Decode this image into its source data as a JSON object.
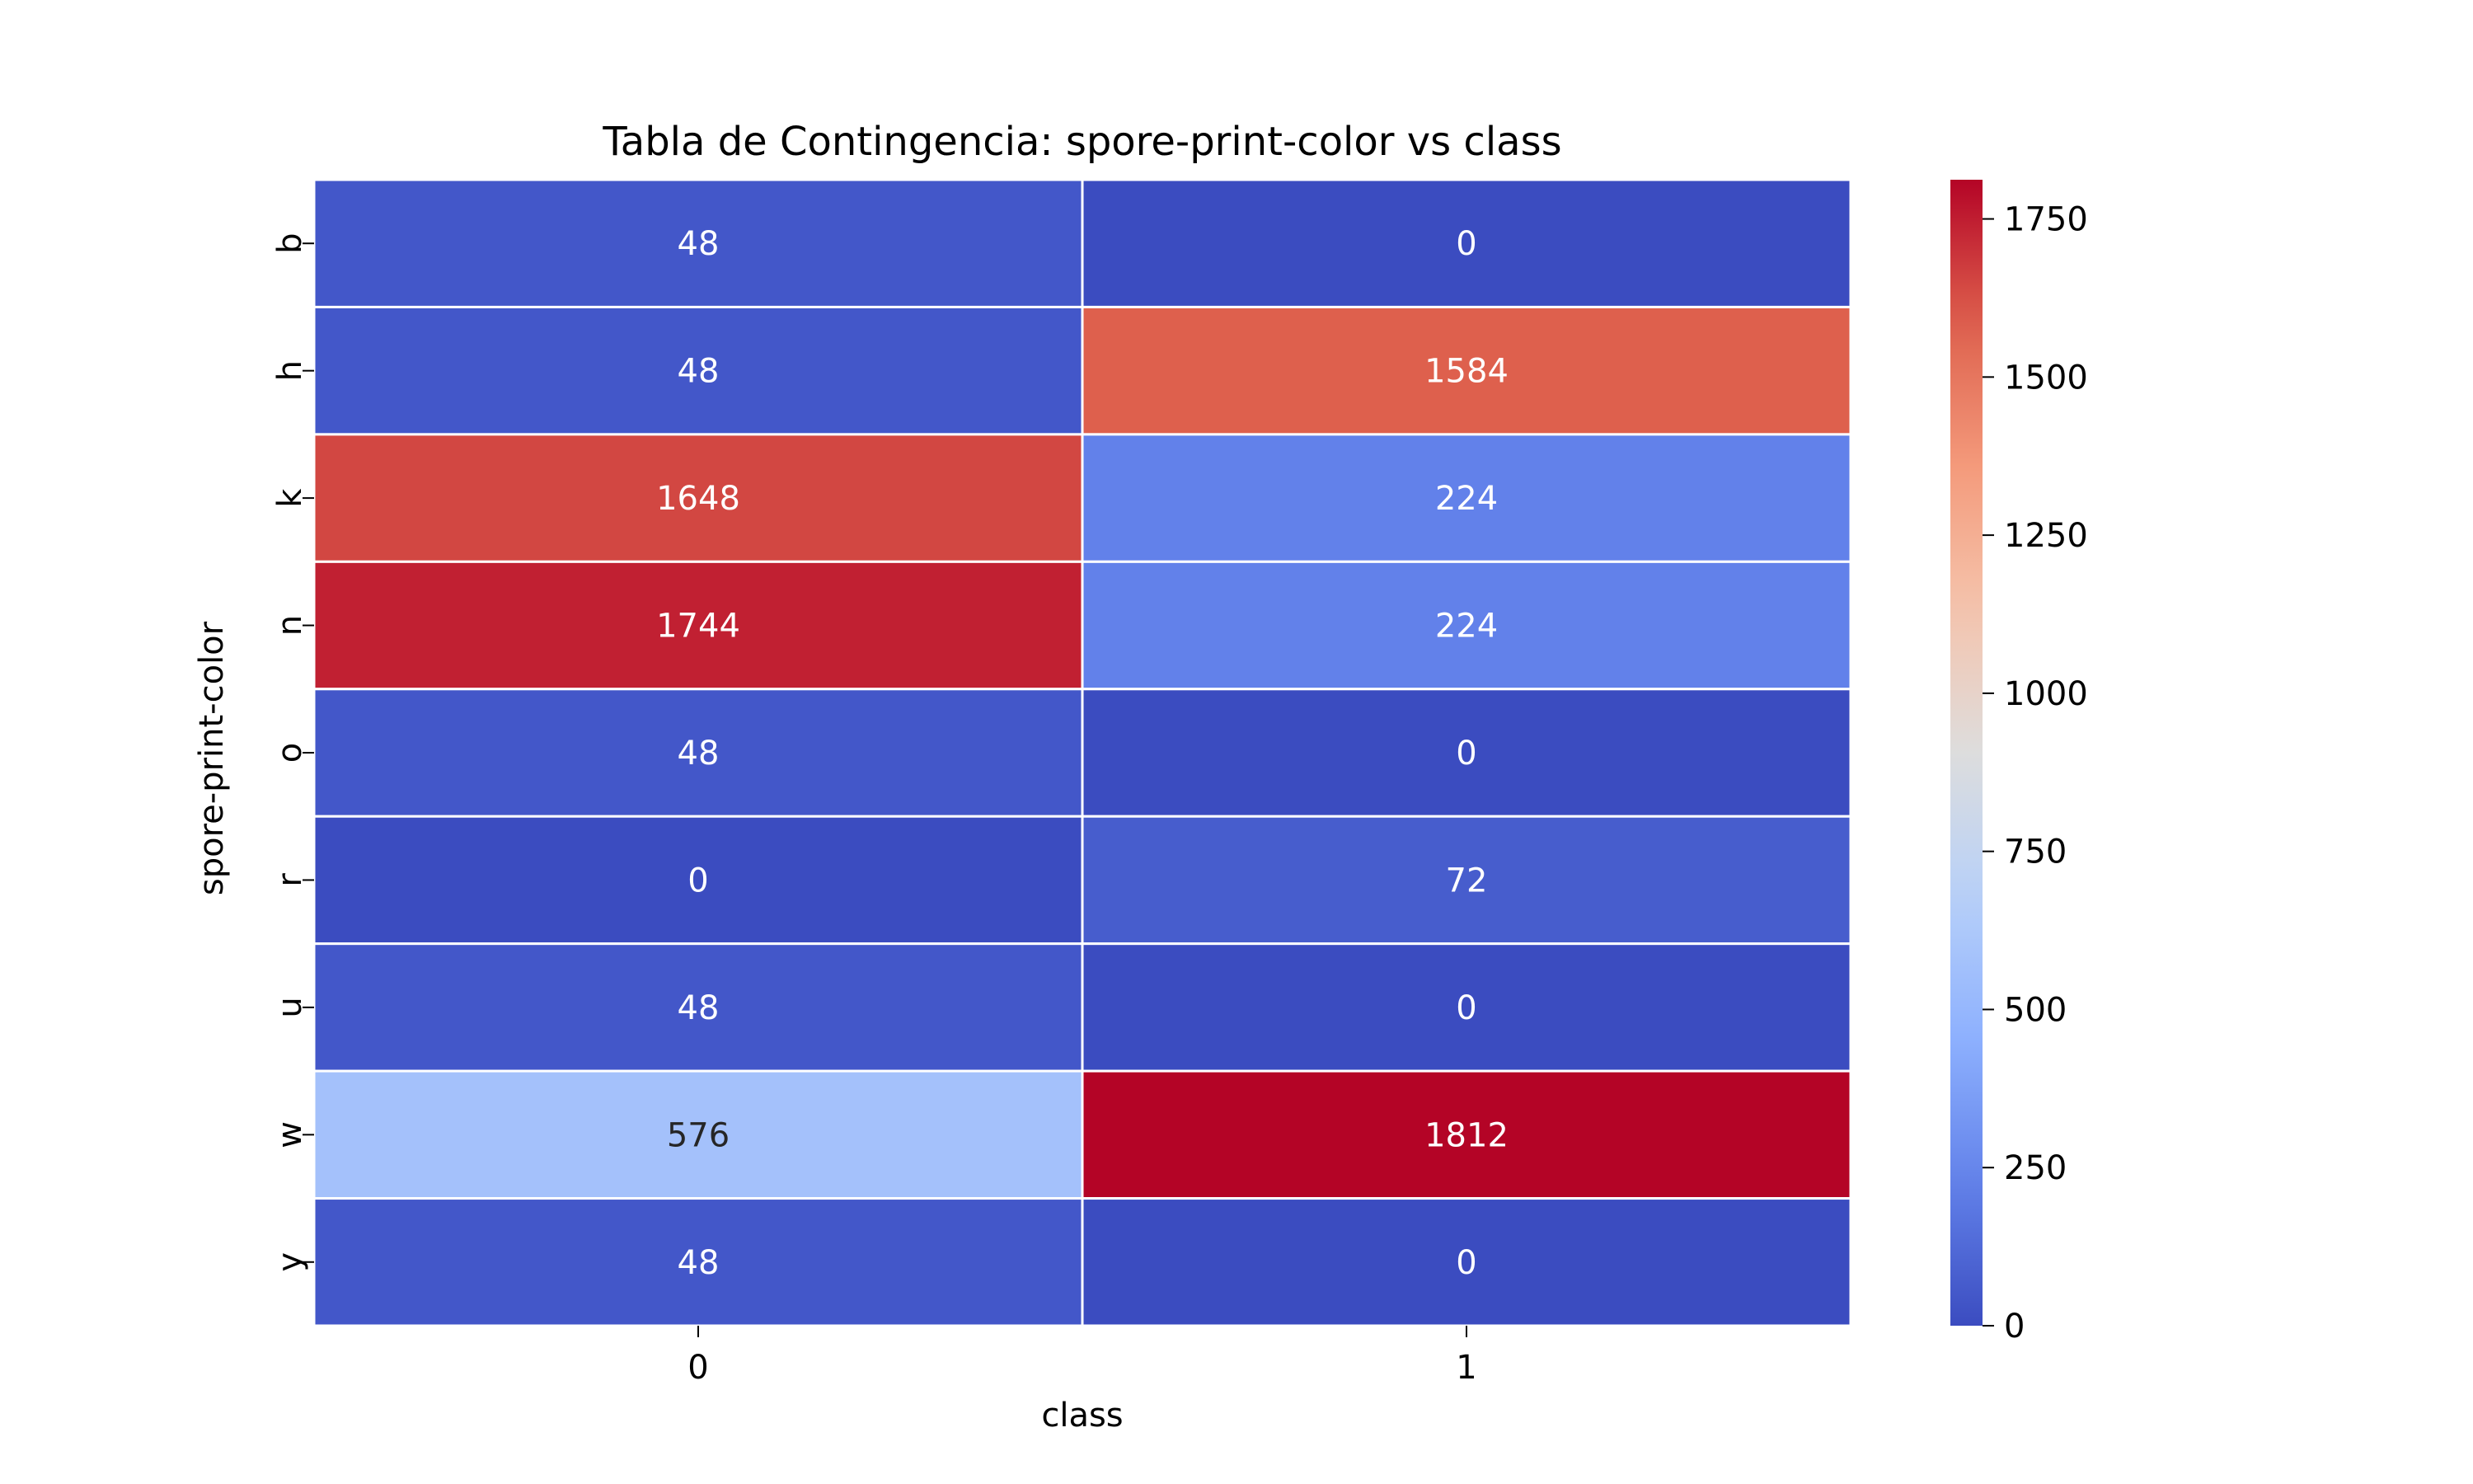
{
  "chart_data": {
    "type": "heatmap",
    "title": "Tabla de Contingencia: spore-print-color vs class",
    "xlabel": "class",
    "ylabel": "spore-print-color",
    "x_categories": [
      "0",
      "1"
    ],
    "y_categories": [
      "b",
      "h",
      "k",
      "n",
      "o",
      "r",
      "u",
      "w",
      "y"
    ],
    "values": [
      [
        48,
        0
      ],
      [
        48,
        1584
      ],
      [
        1648,
        224
      ],
      [
        1744,
        224
      ],
      [
        48,
        0
      ],
      [
        0,
        72
      ],
      [
        48,
        0
      ],
      [
        576,
        1812
      ],
      [
        48,
        0
      ]
    ],
    "colormap": "coolwarm",
    "vmin": 0,
    "vmax": 1812,
    "colorbar_ticks": [
      0,
      250,
      500,
      750,
      1000,
      1250,
      1500,
      1750
    ],
    "annotations": true,
    "cell_border_color": "#ffffff"
  }
}
